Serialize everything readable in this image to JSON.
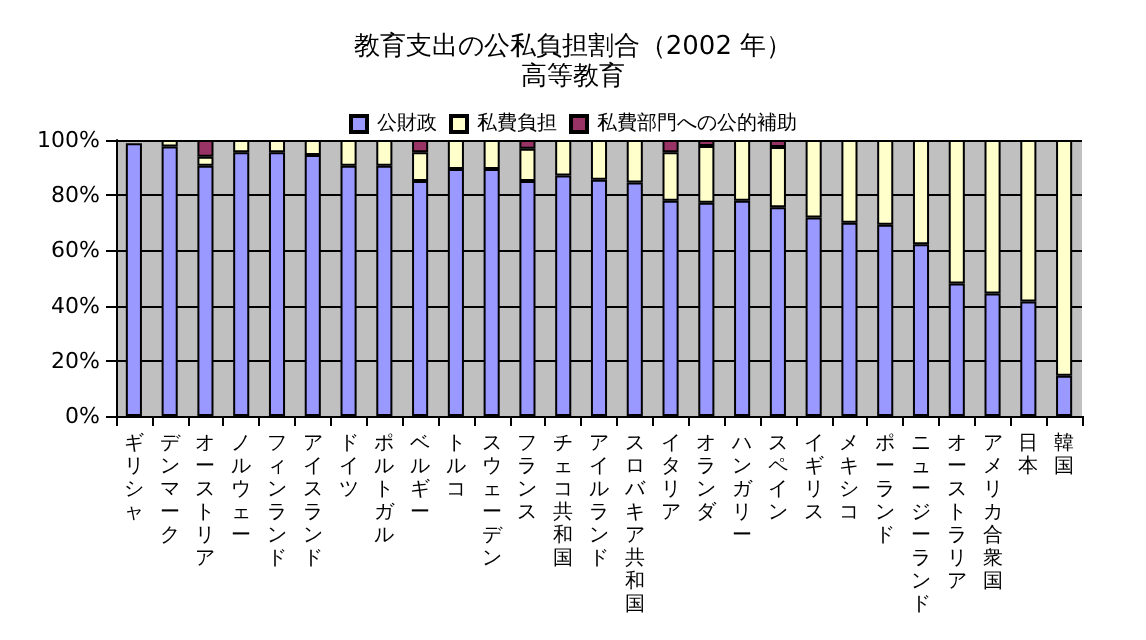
{
  "chart_data": {
    "type": "bar",
    "title": "教育支出の公私負担割合（2002 年）",
    "subtitle": "高等教育",
    "stacked": true,
    "legend": "top",
    "grid": "y",
    "categories": [
      "ギリシャ",
      "デンマーク",
      "オーストリア",
      "ノルウェー",
      "フィンランド",
      "アイスランド",
      "ドイツ",
      "ポルトガル",
      "ベルギー",
      "トルコ",
      "スウェーデン",
      "フランス",
      "チェコ共和国",
      "アイルランド",
      "スロバキア共和国",
      "イタリア",
      "オランダ",
      "ハンガリー",
      "スペイン",
      "イギリス",
      "メキシコ",
      "ポーランド",
      "ニュージーランド",
      "オーストラリア",
      "アメリカ合衆国",
      "日本",
      "韓国"
    ],
    "series": [
      {
        "name": "公財政",
        "color": "#9999ff",
        "values": [
          98.8,
          97.6,
          90.7,
          95.6,
          95.6,
          94.6,
          90.7,
          90.7,
          85.1,
          89.5,
          89.5,
          85.1,
          87.1,
          85.6,
          84.6,
          78.0,
          77.3,
          78.0,
          75.6,
          71.9,
          70.0,
          69.3,
          62.2,
          48.0,
          44.4,
          41.5,
          14.6
        ]
      },
      {
        "name": "私費負担",
        "color": "#ffffcc",
        "values": [
          null,
          2.4,
          3.2,
          4.4,
          4.4,
          5.4,
          9.3,
          9.3,
          10.5,
          10.5,
          10.5,
          11.7,
          12.9,
          14.4,
          15.4,
          17.6,
          20.5,
          22.0,
          21.9,
          28.1,
          30.0,
          30.7,
          37.8,
          52.0,
          55.6,
          58.5,
          85.4
        ]
      },
      {
        "name": "私費部門への公的補助",
        "color": "#993366",
        "values": [
          0,
          0,
          6.1,
          0,
          0,
          0,
          0,
          0,
          4.4,
          0,
          0,
          3.2,
          0,
          0,
          0,
          4.4,
          2.2,
          0,
          2.5,
          0,
          0,
          0,
          0,
          0,
          0,
          0,
          0
        ]
      }
    ],
    "ylim": [
      0,
      100
    ],
    "yticks": [
      {
        "value": 0,
        "label": "0%"
      },
      {
        "value": 20,
        "label": "20%"
      },
      {
        "value": 40,
        "label": "40%"
      },
      {
        "value": 60,
        "label": "60%"
      },
      {
        "value": 80,
        "label": "80%"
      },
      {
        "value": 100,
        "label": "100%"
      }
    ]
  }
}
